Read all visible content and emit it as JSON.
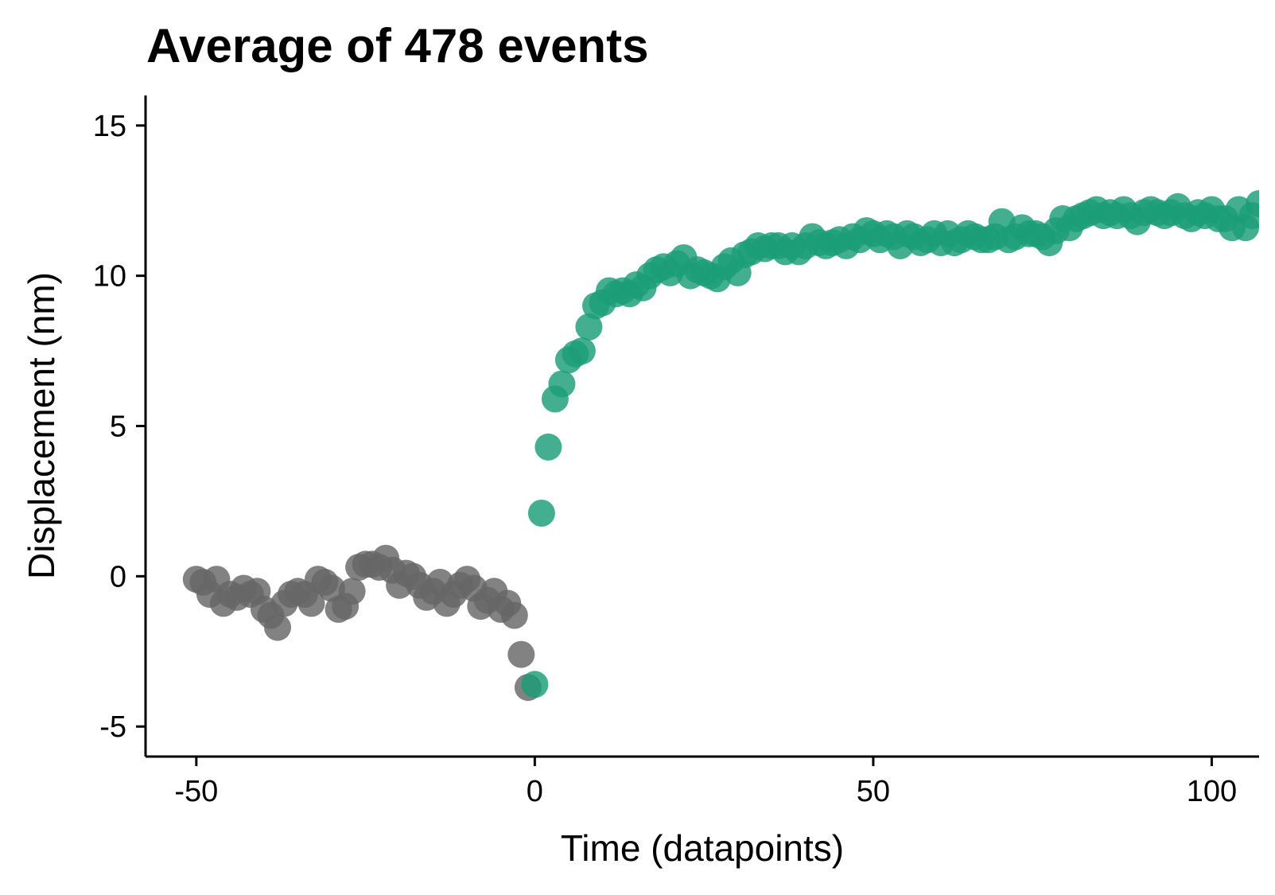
{
  "chart_data": {
    "type": "scatter",
    "title": "Average of 478 events",
    "xlabel": "Time (datapoints)",
    "ylabel": "Displacement (nm)",
    "xlim": [
      -57.5,
      107
    ],
    "ylim": [
      -6,
      16
    ],
    "x_ticks": [
      -50,
      0,
      50,
      100
    ],
    "x_tick_labels": [
      "-50",
      "0",
      "50",
      "100"
    ],
    "y_ticks": [
      -5,
      0,
      5,
      10,
      15
    ],
    "y_tick_labels": [
      "-5",
      "0",
      "5",
      "10",
      "15"
    ],
    "grid": false,
    "legend": "none",
    "series": [
      {
        "color": "#666666",
        "x": [
          -50,
          -49,
          -48,
          -47,
          -46,
          -45,
          -44,
          -43,
          -42,
          -41,
          -40,
          -39,
          -38,
          -37,
          -36,
          -35,
          -34,
          -33,
          -32,
          -31,
          -30,
          -29,
          -28,
          -27,
          -26,
          -25,
          -24,
          -23,
          -22,
          -21,
          -20,
          -19,
          -18,
          -17,
          -16,
          -15,
          -14,
          -13,
          -12,
          -11,
          -10,
          -9,
          -8,
          -7,
          -6,
          -5,
          -4,
          -3,
          -2,
          -1
        ],
        "y": [
          -0.1,
          -0.2,
          -0.6,
          -0.1,
          -0.9,
          -0.6,
          -0.7,
          -0.4,
          -0.6,
          -0.5,
          -1.1,
          -1.3,
          -1.7,
          -0.9,
          -0.6,
          -0.5,
          -0.6,
          -0.9,
          -0.1,
          -0.2,
          -0.4,
          -1.1,
          -1.0,
          -0.5,
          0.3,
          0.4,
          0.4,
          0.3,
          0.6,
          0.2,
          -0.3,
          0.1,
          0.0,
          -0.3,
          -0.7,
          -0.5,
          -0.2,
          -0.9,
          -0.6,
          -0.3,
          -0.1,
          -0.4,
          -1.0,
          -0.8,
          -0.5,
          -1.1,
          -0.9,
          -1.3,
          -2.6,
          -3.7
        ]
      },
      {
        "color": "#1b9e77",
        "x": [
          0,
          1,
          2,
          3,
          4,
          5,
          6,
          7,
          8,
          9,
          10,
          11,
          12,
          13,
          14,
          15,
          16,
          17,
          18,
          19,
          20,
          21,
          22,
          23,
          24,
          25,
          26,
          27,
          28,
          29,
          30,
          31,
          32,
          33,
          34,
          35,
          36,
          37,
          38,
          39,
          40,
          41,
          42,
          43,
          44,
          45,
          46,
          47,
          48,
          49,
          50,
          51,
          52,
          53,
          54,
          55,
          56,
          57,
          58,
          59,
          60,
          61,
          62,
          63,
          64,
          65,
          66,
          67,
          68,
          69,
          70,
          71,
          72,
          73,
          74,
          75,
          76,
          77,
          78,
          79,
          80,
          81,
          82,
          83,
          84,
          85,
          86,
          87,
          88,
          89,
          90,
          91,
          92,
          93,
          94,
          95,
          96,
          97,
          98,
          99,
          100,
          101,
          102,
          103,
          104,
          105,
          106,
          107
        ],
        "y": [
          -3.6,
          2.1,
          4.3,
          5.9,
          6.4,
          7.2,
          7.4,
          7.5,
          8.3,
          9.0,
          9.1,
          9.5,
          9.4,
          9.5,
          9.4,
          9.7,
          9.6,
          10.0,
          10.2,
          10.3,
          10.1,
          10.4,
          10.6,
          10.0,
          10.2,
          10.1,
          10.0,
          9.9,
          10.3,
          10.5,
          10.1,
          10.7,
          10.8,
          11.0,
          10.9,
          11.0,
          11.0,
          10.8,
          11.0,
          10.8,
          11.0,
          11.3,
          11.1,
          11.0,
          11.1,
          11.2,
          11.0,
          11.3,
          11.2,
          11.5,
          11.4,
          11.2,
          11.4,
          11.3,
          11.0,
          11.4,
          11.3,
          11.1,
          11.2,
          11.4,
          11.1,
          11.4,
          11.1,
          11.2,
          11.4,
          11.3,
          11.2,
          11.2,
          11.3,
          11.8,
          11.2,
          11.3,
          11.6,
          11.4,
          11.4,
          11.3,
          11.1,
          11.5,
          11.9,
          11.6,
          11.9,
          12.0,
          12.1,
          12.2,
          12.0,
          12.1,
          12.0,
          12.2,
          12.0,
          11.8,
          12.1,
          12.2,
          12.1,
          12.0,
          12.1,
          12.3,
          12.0,
          11.9,
          12.1,
          12.0,
          12.2,
          11.9,
          11.9,
          11.6,
          12.2,
          11.6,
          12.0,
          12.4
        ]
      }
    ]
  }
}
